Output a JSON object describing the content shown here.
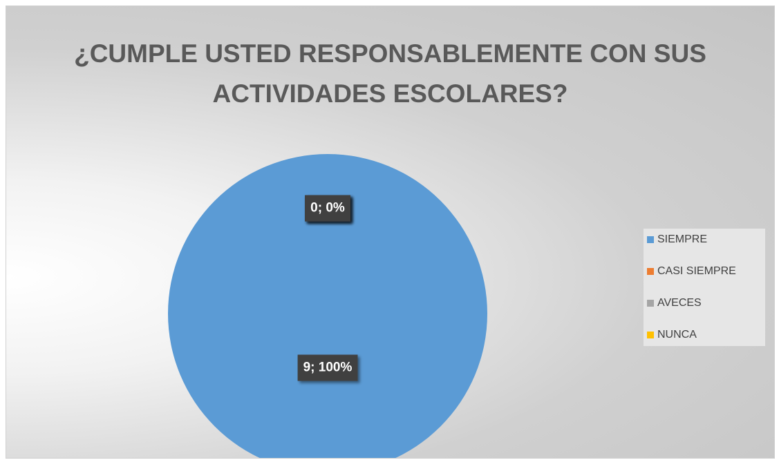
{
  "chart_data": {
    "type": "pie",
    "title": "¿CUMPLE USTED RESPONSABLEMENTE CON SUS ACTIVIDADES ESCOLARES?",
    "categories": [
      "SIEMPRE",
      "CASI SIEMPRE",
      "AVECES",
      "NUNCA"
    ],
    "values": [
      9,
      0,
      0,
      0
    ],
    "value_labels": [
      "9; 100%",
      "0; 0%",
      "0; 0%",
      "0; 0%"
    ],
    "colors": [
      "#5b9bd5",
      "#ed7d31",
      "#a5a5a5",
      "#ffc000"
    ],
    "legend": "right"
  }
}
